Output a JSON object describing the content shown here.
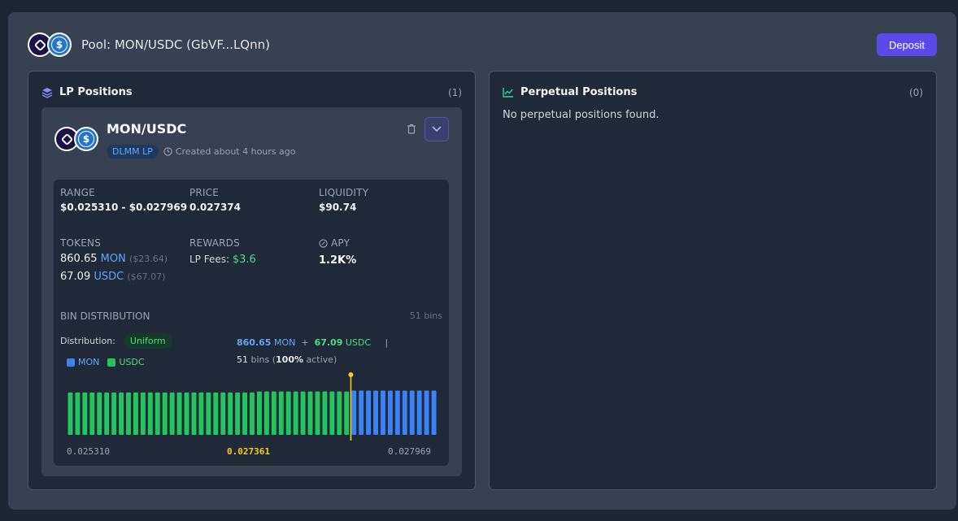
{
  "pool": {
    "title": "Pool: MON/USDC (GbVF...LQnn)",
    "deposit_label": "Deposit"
  },
  "lp_panel": {
    "title": "LP Positions",
    "count": "(1)"
  },
  "perp_panel": {
    "title": "Perpetual Positions",
    "count": "(0)",
    "empty_text": "No perpetual positions found."
  },
  "position": {
    "pair": "MON/USDC",
    "badge": "DLMM LP",
    "created": "Created about 4 hours ago",
    "range_label": "RANGE",
    "range_value": "$0.025310 - $0.027969",
    "price_label": "PRICE",
    "price_value": "0.027374",
    "liquidity_label": "LIQUIDITY",
    "liquidity_value": "$90.74",
    "tokens_label": "TOKENS",
    "token1_amount": "860.65",
    "token1_symbol": "MON",
    "token1_usd": "($23.64)",
    "token2_amount": "67.09",
    "token2_symbol": "USDC",
    "token2_usd": "($67.07)",
    "rewards_label": "REWARDS",
    "lp_fees_label": "LP Fees:",
    "lp_fees_value": "$3.6",
    "apy_label": "APY",
    "apy_value": "1.2K%"
  },
  "bins": {
    "title": "BIN DISTRIBUTION",
    "count_label": "51 bins",
    "distribution_label": "Distribution:",
    "distribution_value": "Uniform",
    "legend": [
      {
        "name": "MON",
        "color": "#3b82f6"
      },
      {
        "name": "USDC",
        "color": "#22c55e"
      }
    ],
    "summary": {
      "mon_amount": "860.65",
      "mon_symbol": "MON",
      "plus": "+",
      "usdc_amount": "67.09",
      "usdc_symbol": "USDC",
      "sep": "|",
      "bins_count": "51",
      "bins_word": "bins (",
      "active_pct": "100%",
      "active_word": "active)"
    },
    "axis_min": "0.025310",
    "axis_active": "0.027361",
    "axis_max": "0.027969"
  },
  "chart_data": {
    "type": "bar",
    "title": "",
    "total_bins": 51,
    "usdc_bins": 39,
    "active_bin_index": 39,
    "x_range": [
      0.02531,
      0.027969
    ],
    "active_price": 0.027361,
    "values": [
      0.84,
      0.84,
      0.84,
      0.84,
      0.84,
      0.84,
      0.84,
      0.84,
      0.84,
      0.84,
      0.84,
      0.84,
      0.84,
      0.84,
      0.84,
      0.84,
      0.84,
      0.84,
      0.84,
      0.84,
      0.84,
      0.84,
      0.84,
      0.84,
      0.84,
      0.84,
      0.86,
      0.86,
      0.86,
      0.86,
      0.86,
      0.86,
      0.86,
      0.86,
      0.86,
      0.86,
      0.86,
      0.86,
      0.86,
      0.88,
      0.88,
      0.88,
      0.88,
      0.88,
      0.88,
      0.88,
      0.88,
      0.88,
      0.88,
      0.88,
      0.88
    ],
    "series_colors": {
      "USDC": "#22c55e",
      "MON": "#3b82f6"
    }
  },
  "colors": {
    "accent": "#5b4ae8",
    "mon": "#60a5fa",
    "usdc": "#4ade80",
    "active": "#facc15"
  }
}
